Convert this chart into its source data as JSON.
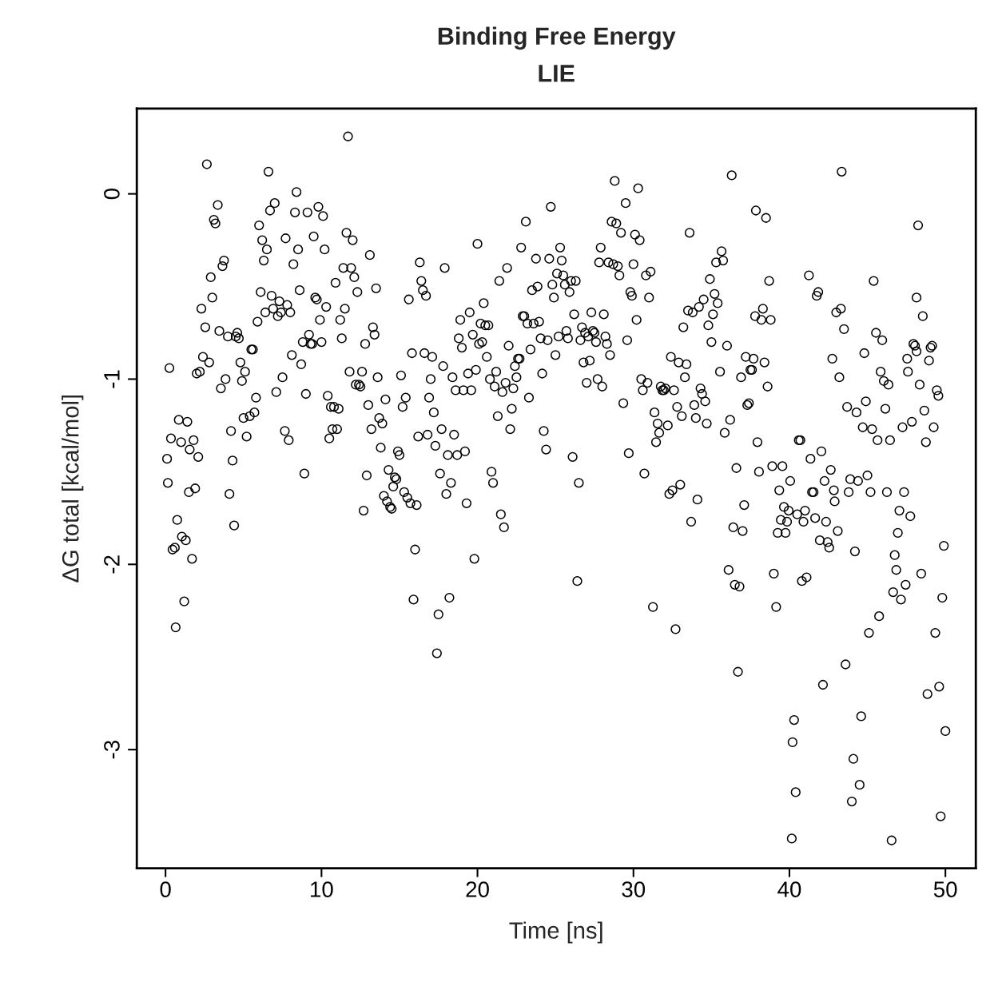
{
  "chart_data": {
    "type": "scatter",
    "title": "Binding Free Energy",
    "subtitle": "LIE",
    "xlabel": "Time [ns]",
    "ylabel": "ΔG total [kcal/mol]",
    "xlim": [
      -1.84,
      51.95
    ],
    "ylim": [
      -3.64,
      0.46
    ],
    "xticks": [
      0,
      10,
      20,
      30,
      40,
      50
    ],
    "yticks": [
      {
        "value": 0,
        "label": "0"
      },
      {
        "value": -1,
        "label": "-1"
      },
      {
        "value": -2,
        "label": "-2"
      },
      {
        "value": -3,
        "label": "-3"
      }
    ],
    "marker": "circle",
    "grid": false,
    "series": [
      {
        "color": "#000000",
        "x": [
          0.1,
          0.15,
          0.25,
          0.35,
          0.45,
          0.6,
          0.65,
          0.75,
          0.85,
          1.0,
          1.05,
          1.2,
          1.3,
          1.4,
          1.5,
          1.55,
          1.7,
          1.8,
          1.9,
          2.0,
          2.1,
          2.2,
          2.3,
          2.4,
          2.55,
          2.65,
          2.8,
          2.9,
          3.0,
          3.1,
          3.2,
          3.35,
          3.45,
          3.55,
          3.65,
          3.75,
          3.85,
          4.0,
          4.1,
          4.2,
          4.3,
          4.4,
          4.5,
          4.6,
          4.7,
          4.8,
          4.9,
          5.0,
          5.1,
          5.2,
          5.4,
          5.5,
          5.6,
          5.7,
          5.8,
          5.9,
          6.0,
          6.1,
          6.2,
          6.3,
          6.4,
          6.5,
          6.6,
          6.7,
          6.8,
          6.9,
          7.0,
          7.1,
          7.2,
          7.3,
          7.4,
          7.5,
          7.65,
          7.7,
          7.8,
          7.9,
          8.0,
          8.1,
          8.2,
          8.3,
          8.4,
          8.5,
          8.6,
          8.7,
          8.8,
          8.9,
          9.0,
          9.1,
          9.2,
          9.3,
          9.4,
          9.5,
          9.6,
          9.7,
          9.8,
          9.9,
          10.0,
          10.1,
          10.2,
          10.3,
          10.4,
          10.5,
          10.6,
          10.7,
          10.8,
          10.9,
          11.0,
          11.1,
          11.2,
          11.3,
          11.4,
          11.5,
          11.6,
          11.7,
          11.8,
          11.9,
          12.0,
          12.1,
          12.2,
          12.3,
          12.4,
          12.5,
          12.6,
          12.7,
          12.8,
          12.9,
          13.0,
          13.1,
          13.2,
          13.3,
          13.4,
          13.5,
          13.6,
          13.7,
          13.8,
          13.9,
          14.0,
          14.1,
          14.2,
          14.3,
          14.4,
          14.5,
          14.6,
          14.7,
          14.8,
          14.9,
          15.0,
          15.1,
          15.2,
          15.3,
          15.4,
          15.5,
          15.6,
          15.7,
          15.8,
          15.9,
          16.0,
          16.1,
          16.2,
          16.3,
          16.4,
          16.5,
          16.6,
          16.7,
          16.8,
          16.9,
          17.0,
          17.1,
          17.2,
          17.3,
          17.4,
          17.5,
          17.6,
          17.7,
          17.8,
          17.9,
          18.0,
          18.1,
          18.2,
          18.3,
          18.4,
          18.5,
          18.6,
          18.7,
          18.8,
          18.9,
          19.0,
          19.1,
          19.2,
          19.3,
          19.4,
          19.5,
          19.6,
          19.7,
          19.8,
          19.9,
          20.0,
          20.1,
          20.2,
          20.3,
          20.4,
          20.5,
          20.6,
          20.7,
          20.8,
          20.9,
          21.0,
          21.1,
          21.2,
          21.3,
          21.4,
          21.5,
          21.6,
          21.7,
          21.8,
          21.9,
          22.0,
          22.1,
          22.2,
          22.3,
          22.4,
          22.5,
          22.6,
          22.7,
          22.8,
          22.9,
          23.0,
          23.1,
          23.2,
          23.3,
          23.4,
          23.5,
          23.6,
          23.75,
          23.85,
          23.95,
          24.05,
          24.15,
          24.25,
          24.4,
          24.5,
          24.6,
          24.7,
          24.8,
          24.9,
          25.0,
          25.1,
          25.2,
          25.3,
          25.4,
          25.5,
          25.6,
          25.7,
          25.8,
          25.9,
          26.0,
          26.1,
          26.2,
          26.3,
          26.4,
          26.5,
          26.6,
          26.7,
          26.8,
          26.9,
          27.0,
          27.1,
          27.2,
          27.3,
          27.4,
          27.5,
          27.6,
          27.7,
          27.8,
          27.9,
          28.0,
          28.1,
          28.2,
          28.3,
          28.4,
          28.5,
          28.6,
          28.7,
          28.8,
          28.9,
          29.0,
          29.1,
          29.2,
          29.35,
          29.5,
          29.6,
          29.7,
          29.8,
          29.9,
          30.0,
          30.1,
          30.2,
          30.3,
          30.4,
          30.5,
          30.6,
          30.7,
          30.8,
          30.9,
          31.0,
          31.1,
          31.25,
          31.35,
          31.45,
          31.55,
          31.65,
          31.75,
          31.85,
          31.95,
          32.05,
          32.2,
          32.3,
          32.4,
          32.5,
          32.6,
          32.7,
          32.8,
          32.9,
          33.0,
          33.1,
          33.2,
          33.3,
          33.4,
          33.5,
          33.6,
          33.7,
          33.8,
          33.9,
          34.0,
          34.1,
          34.2,
          34.3,
          34.4,
          34.5,
          34.6,
          34.7,
          34.8,
          34.9,
          35.0,
          35.1,
          35.2,
          35.3,
          35.4,
          35.55,
          35.65,
          35.75,
          35.85,
          36.0,
          36.1,
          36.2,
          36.3,
          36.4,
          36.5,
          36.6,
          36.7,
          36.8,
          36.9,
          37.0,
          37.1,
          37.2,
          37.3,
          37.4,
          37.5,
          37.6,
          37.7,
          37.8,
          37.85,
          37.95,
          38.05,
          38.2,
          38.3,
          38.4,
          38.5,
          38.6,
          38.7,
          38.8,
          38.9,
          39.0,
          39.15,
          39.25,
          39.35,
          39.45,
          39.55,
          39.65,
          39.75,
          39.85,
          39.95,
          40.05,
          40.15,
          40.2,
          40.3,
          40.4,
          40.5,
          40.6,
          40.7,
          40.8,
          40.9,
          41.0,
          41.1,
          41.25,
          41.35,
          41.45,
          41.55,
          41.65,
          41.75,
          41.85,
          41.95,
          42.05,
          42.15,
          42.25,
          42.35,
          42.45,
          42.55,
          42.65,
          42.75,
          42.85,
          42.9,
          43.0,
          43.1,
          43.2,
          43.3,
          43.35,
          43.5,
          43.6,
          43.7,
          43.8,
          43.9,
          44.0,
          44.1,
          44.2,
          44.3,
          44.4,
          44.5,
          44.6,
          44.7,
          44.8,
          44.9,
          45.0,
          45.1,
          45.2,
          45.3,
          45.4,
          45.55,
          45.65,
          45.75,
          45.85,
          45.95,
          46.05,
          46.15,
          46.25,
          46.35,
          46.45,
          46.55,
          46.65,
          46.75,
          46.85,
          46.95,
          47.05,
          47.15,
          47.25,
          47.35,
          47.45,
          47.55,
          47.6,
          47.75,
          47.85,
          47.95,
          48.05,
          48.15,
          48.15,
          48.25,
          48.35,
          48.45,
          48.55,
          48.65,
          48.75,
          48.85,
          48.95,
          49.05,
          49.15,
          49.25,
          49.35,
          49.45,
          49.55,
          49.6,
          49.7,
          49.8,
          49.9,
          50.0
        ],
        "values": [
          -1.43,
          -1.56,
          -0.94,
          -1.32,
          -1.92,
          -1.91,
          -2.34,
          -1.76,
          -1.22,
          -1.34,
          -1.85,
          -2.2,
          -1.87,
          -1.23,
          -1.61,
          -1.38,
          -1.97,
          -1.33,
          -1.59,
          -0.97,
          -1.42,
          -0.96,
          -0.62,
          -0.88,
          -0.72,
          0.16,
          -0.91,
          -0.45,
          -0.56,
          -0.14,
          -0.16,
          -0.06,
          -0.74,
          -1.05,
          -0.39,
          -0.36,
          -1.0,
          -0.77,
          -1.62,
          -1.28,
          -1.44,
          -1.79,
          -0.77,
          -0.75,
          -0.78,
          -0.91,
          -1.01,
          -1.21,
          -0.96,
          -1.31,
          -1.2,
          -0.84,
          -0.84,
          -1.18,
          -1.1,
          -0.69,
          -0.17,
          -0.53,
          -0.25,
          -0.36,
          -0.64,
          -0.3,
          0.12,
          -0.09,
          -0.55,
          -0.62,
          -0.05,
          -1.07,
          -0.66,
          -0.58,
          -0.64,
          -0.99,
          -1.28,
          -0.24,
          -0.6,
          -1.33,
          -0.64,
          -0.87,
          -0.38,
          -0.1,
          0.01,
          -0.3,
          -0.52,
          -0.92,
          -0.8,
          -1.51,
          -1.08,
          -0.1,
          -0.76,
          -0.81,
          -0.81,
          -0.23,
          -0.56,
          -0.57,
          -0.07,
          -0.68,
          -0.8,
          -0.12,
          -0.3,
          -0.61,
          -1.09,
          -1.32,
          -1.15,
          -1.27,
          -1.15,
          -0.48,
          -1.27,
          -1.16,
          -0.68,
          -0.78,
          -0.4,
          -0.62,
          -0.21,
          0.31,
          -0.96,
          -0.4,
          -0.25,
          -0.45,
          -1.03,
          -0.53,
          -1.03,
          -1.04,
          -0.96,
          -1.71,
          -0.81,
          -1.52,
          -1.14,
          -0.33,
          -1.27,
          -0.72,
          -0.76,
          -0.51,
          -0.99,
          -1.21,
          -1.37,
          -1.24,
          -1.63,
          -1.11,
          -1.66,
          -1.49,
          -1.69,
          -1.7,
          -1.58,
          -1.53,
          -1.54,
          -1.39,
          -1.41,
          -0.98,
          -1.15,
          -1.61,
          -1.1,
          -1.64,
          -0.57,
          -1.67,
          -0.86,
          -2.19,
          -1.92,
          -1.68,
          -1.31,
          -0.37,
          -0.47,
          -0.52,
          -0.86,
          -0.55,
          -1.3,
          -1.1,
          -1.0,
          -0.88,
          -1.18,
          -1.36,
          -2.48,
          -2.27,
          -1.51,
          -1.27,
          -0.93,
          -0.4,
          -1.62,
          -1.41,
          -2.18,
          -1.56,
          -0.99,
          -1.3,
          -1.06,
          -1.41,
          -0.78,
          -0.68,
          -0.83,
          -1.06,
          -1.39,
          -1.67,
          -0.97,
          -0.64,
          -1.06,
          -0.76,
          -1.97,
          -0.95,
          -0.27,
          -0.81,
          -0.7,
          -0.8,
          -0.59,
          -0.71,
          -0.88,
          -0.71,
          -1.0,
          -1.5,
          -1.56,
          -1.04,
          -0.96,
          -1.2,
          -0.47,
          -1.73,
          -1.07,
          -1.8,
          -1.02,
          -0.4,
          -0.82,
          -1.27,
          -1.16,
          -1.05,
          -0.93,
          -0.99,
          -0.89,
          -0.89,
          -0.29,
          -0.66,
          -0.66,
          -0.15,
          -0.7,
          -1.1,
          -0.84,
          -0.52,
          -0.7,
          -0.35,
          -0.5,
          -0.69,
          -0.78,
          -0.97,
          -1.28,
          -1.38,
          -0.79,
          -0.35,
          -0.07,
          -0.49,
          -0.56,
          -0.87,
          -0.43,
          -0.77,
          -0.29,
          -0.36,
          -0.44,
          -0.49,
          -0.74,
          -0.78,
          -0.53,
          -0.47,
          -1.42,
          -0.65,
          -0.47,
          -2.09,
          -1.56,
          -0.79,
          -0.72,
          -0.91,
          -0.75,
          -1.02,
          -0.77,
          -0.9,
          -0.64,
          -0.74,
          -0.75,
          -0.8,
          -1.0,
          -0.37,
          -0.29,
          -1.04,
          -0.65,
          -0.77,
          -0.81,
          -0.37,
          -0.87,
          -0.15,
          -0.38,
          0.07,
          -0.16,
          -0.39,
          -0.44,
          -0.21,
          -1.13,
          -0.05,
          -0.79,
          -1.4,
          -0.53,
          -0.55,
          -0.38,
          -0.22,
          -0.68,
          0.03,
          -0.25,
          -1.0,
          -1.06,
          -1.51,
          -0.44,
          -1.02,
          -0.56,
          -0.42,
          -2.23,
          -1.18,
          -1.34,
          -1.24,
          -1.29,
          -1.04,
          -1.06,
          -1.06,
          -1.05,
          -1.25,
          -1.62,
          -0.88,
          -1.6,
          -1.06,
          -2.35,
          -1.15,
          -0.91,
          -1.57,
          -1.2,
          -0.72,
          -0.99,
          -0.92,
          -0.63,
          -0.21,
          -1.77,
          -0.64,
          -1.14,
          -1.21,
          -1.65,
          -0.61,
          -1.05,
          -1.08,
          -0.57,
          -1.12,
          -1.24,
          -0.71,
          -0.46,
          -0.8,
          -0.65,
          -0.54,
          -0.37,
          -0.59,
          -0.96,
          -0.31,
          -0.36,
          -1.29,
          -0.82,
          -2.03,
          -1.22,
          0.1,
          -1.8,
          -2.11,
          -1.48,
          -2.58,
          -2.12,
          -0.99,
          -1.82,
          -1.68,
          -0.88,
          -1.14,
          -1.13,
          -0.95,
          -0.95,
          -0.89,
          -0.66,
          -0.09,
          -1.34,
          -1.5,
          -0.68,
          -0.62,
          -0.91,
          -0.13,
          -1.04,
          -0.47,
          -0.68,
          -1.47,
          -2.05,
          -2.23,
          -1.83,
          -1.6,
          -1.76,
          -1.47,
          -1.69,
          -1.83,
          -1.77,
          -1.71,
          -1.55,
          -3.48,
          -2.96,
          -2.84,
          -3.23,
          -1.73,
          -1.33,
          -1.33,
          -2.09,
          -1.77,
          -1.71,
          -2.07,
          -0.44,
          -1.43,
          -1.61,
          -1.61,
          -1.75,
          -0.55,
          -0.53,
          -1.87,
          -1.39,
          -2.65,
          -1.55,
          -1.77,
          -1.88,
          -1.91,
          -1.49,
          -0.89,
          -1.6,
          -1.66,
          -0.64,
          -1.82,
          -0.99,
          -0.62,
          0.12,
          -0.73,
          -2.54,
          -1.15,
          -1.61,
          -1.54,
          -3.28,
          -3.05,
          -1.93,
          -1.18,
          -1.55,
          -3.19,
          -2.82,
          -1.26,
          -0.86,
          -1.12,
          -1.52,
          -2.37,
          -1.61,
          -1.27,
          -0.47,
          -0.75,
          -1.33,
          -2.28,
          -0.96,
          -0.79,
          -1.01,
          -1.16,
          -1.61,
          -1.03,
          -1.33,
          -3.49,
          -2.15,
          -1.95,
          -2.03,
          -1.83,
          -1.71,
          -2.19,
          -1.26,
          -1.61,
          -2.11,
          -0.89,
          -0.96,
          -1.74,
          -1.23,
          -0.81,
          -0.82,
          -0.85,
          -0.56,
          -0.17,
          -1.03,
          -2.05,
          -0.66,
          -1.17,
          -1.34,
          -2.7,
          -0.9,
          -0.83,
          -0.82,
          -1.26,
          -2.37,
          -1.06,
          -1.09,
          -2.66,
          -3.36,
          -2.18,
          -1.9,
          -2.9
        ]
      }
    ]
  }
}
